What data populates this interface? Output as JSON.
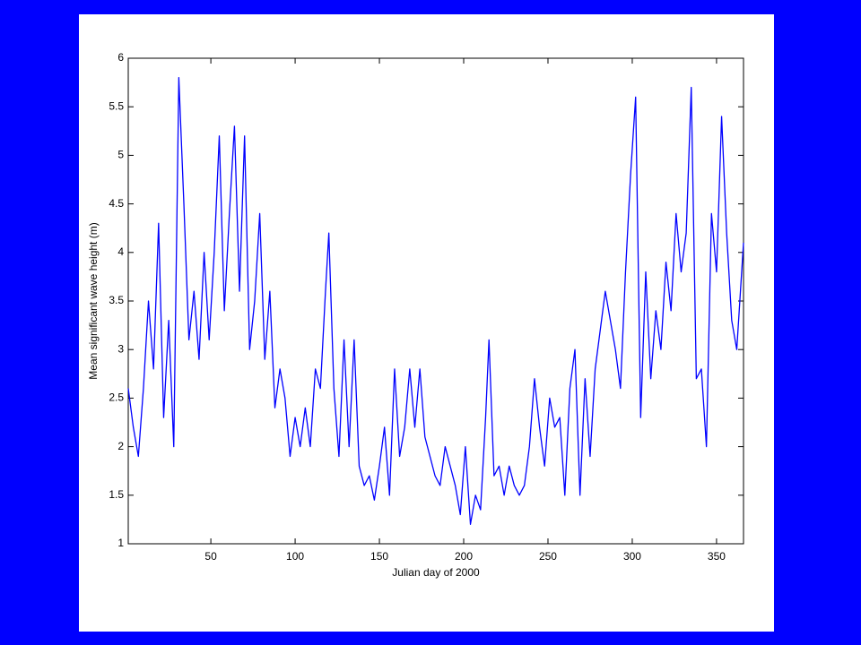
{
  "chart_data": {
    "type": "line",
    "x_label": "Julian day of 2000",
    "y_label": "Mean significant wave height (m)",
    "x": [
      1,
      4,
      7,
      10,
      13,
      16,
      19,
      22,
      25,
      28,
      31,
      34,
      37,
      40,
      43,
      46,
      49,
      52,
      55,
      58,
      61,
      64,
      67,
      70,
      73,
      76,
      79,
      82,
      85,
      88,
      91,
      94,
      97,
      100,
      103,
      106,
      109,
      112,
      115,
      118,
      120,
      123,
      126,
      129,
      132,
      135,
      138,
      141,
      144,
      147,
      150,
      153,
      156,
      159,
      162,
      165,
      168,
      171,
      174,
      177,
      180,
      183,
      186,
      189,
      192,
      195,
      198,
      201,
      204,
      207,
      210,
      213,
      215,
      218,
      221,
      224,
      227,
      230,
      233,
      236,
      239,
      242,
      245,
      248,
      251,
      254,
      257,
      260,
      263,
      266,
      269,
      272,
      275,
      278,
      281,
      284,
      287,
      290,
      293,
      296,
      299,
      302,
      305,
      308,
      311,
      314,
      317,
      320,
      323,
      326,
      329,
      332,
      335,
      338,
      341,
      344,
      347,
      350,
      353,
      356,
      359,
      362,
      366
    ],
    "values": [
      2.6,
      2.2,
      1.9,
      2.6,
      3.5,
      2.8,
      4.3,
      2.3,
      3.3,
      2.0,
      5.8,
      4.5,
      3.1,
      3.6,
      2.9,
      4.0,
      3.1,
      4.0,
      5.2,
      3.4,
      4.4,
      5.3,
      3.6,
      5.2,
      3.0,
      3.5,
      4.4,
      2.9,
      3.6,
      2.4,
      2.8,
      2.5,
      1.9,
      2.3,
      2.0,
      2.4,
      2.0,
      2.8,
      2.6,
      3.6,
      4.2,
      2.6,
      1.9,
      3.1,
      2.0,
      3.1,
      1.8,
      1.6,
      1.7,
      1.45,
      1.8,
      2.2,
      1.5,
      2.8,
      1.9,
      2.2,
      2.8,
      2.2,
      2.8,
      2.1,
      1.9,
      1.7,
      1.6,
      2.0,
      1.8,
      1.6,
      1.3,
      2.0,
      1.2,
      1.5,
      1.35,
      2.3,
      3.1,
      1.7,
      1.8,
      1.5,
      1.8,
      1.6,
      1.5,
      1.6,
      2.0,
      2.7,
      2.2,
      1.8,
      2.5,
      2.2,
      2.3,
      1.5,
      2.6,
      3.0,
      1.5,
      2.7,
      1.9,
      2.8,
      3.2,
      3.6,
      3.3,
      3.0,
      2.6,
      3.8,
      4.8,
      5.6,
      2.3,
      3.8,
      2.7,
      3.4,
      3.0,
      3.9,
      3.4,
      4.4,
      3.8,
      4.2,
      5.7,
      2.7,
      2.8,
      2.0,
      4.4,
      3.8,
      5.4,
      4.2,
      3.3,
      3.0,
      4.1
    ],
    "color": "#0000ff",
    "xlim": [
      1,
      366
    ],
    "xticks": [
      50,
      100,
      150,
      200,
      250,
      300,
      350
    ],
    "ylim": [
      1,
      6
    ],
    "yticks": [
      1,
      1.5,
      2,
      2.5,
      3,
      3.5,
      4,
      4.5,
      5,
      5.5,
      6
    ],
    "grid": false
  }
}
